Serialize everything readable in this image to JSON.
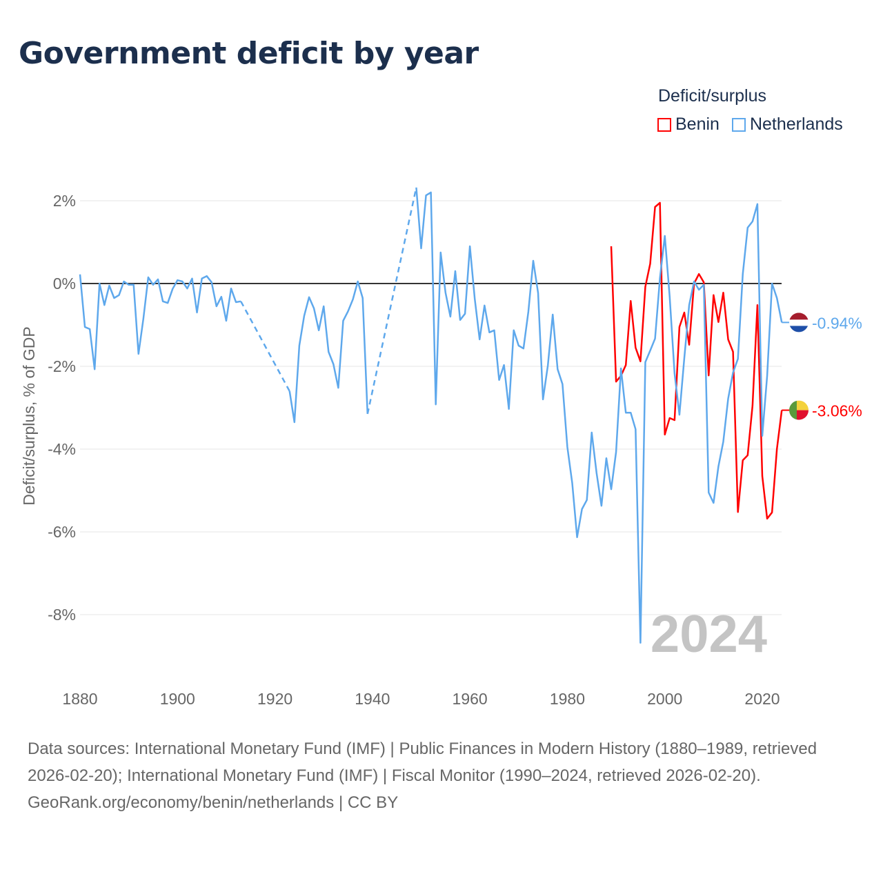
{
  "title": "Government deficit by year",
  "legend": {
    "title": "Deficit/surplus",
    "items": [
      {
        "label": "Benin",
        "color": "#ff0000"
      },
      {
        "label": "Netherlands",
        "color": "#5ea8ec"
      }
    ]
  },
  "chart_data": {
    "type": "line",
    "title": "Government deficit by year",
    "xlabel": "",
    "ylabel": "Deficit/surplus, % of GDP",
    "xlim": [
      1880,
      2024
    ],
    "ylim": [
      -9,
      3
    ],
    "x_ticks": [
      "1880",
      "1900",
      "1920",
      "1940",
      "1960",
      "1980",
      "2000",
      "2020"
    ],
    "y_ticks": [
      "2%",
      "0%",
      "-2%",
      "-4%",
      "-6%",
      "-8%"
    ],
    "year_label": "2024",
    "series": [
      {
        "name": "Netherlands",
        "color": "#5ea8ec",
        "end_label": "-0.94%",
        "points": [
          [
            1880,
            0.22
          ],
          [
            1881,
            -1.05
          ],
          [
            1882,
            -1.1
          ],
          [
            1883,
            -2.07
          ],
          [
            1884,
            0
          ],
          [
            1885,
            -0.52
          ],
          [
            1886,
            -0.05
          ],
          [
            1887,
            -0.35
          ],
          [
            1888,
            -0.28
          ],
          [
            1889,
            0.05
          ],
          [
            1890,
            -0.03
          ],
          [
            1891,
            -0.03
          ],
          [
            1892,
            -1.7
          ],
          [
            1893,
            -0.85
          ],
          [
            1894,
            0.15
          ],
          [
            1895,
            -0.03
          ],
          [
            1896,
            0.1
          ],
          [
            1897,
            -0.43
          ],
          [
            1898,
            -0.47
          ],
          [
            1899,
            -0.13
          ],
          [
            1900,
            0.08
          ],
          [
            1901,
            0.05
          ],
          [
            1902,
            -0.12
          ],
          [
            1903,
            0.12
          ],
          [
            1904,
            -0.7
          ],
          [
            1905,
            0.12
          ],
          [
            1906,
            0.18
          ],
          [
            1907,
            0.03
          ],
          [
            1908,
            -0.55
          ],
          [
            1909,
            -0.32
          ],
          [
            1910,
            -0.9
          ],
          [
            1911,
            -0.12
          ],
          [
            1912,
            -0.45
          ],
          [
            1913,
            -0.43
          ],
          [
            1923,
            -2.6
          ],
          [
            1924,
            -3.35
          ],
          [
            1925,
            -1.5
          ],
          [
            1926,
            -0.78
          ],
          [
            1927,
            -0.33
          ],
          [
            1928,
            -0.6
          ],
          [
            1929,
            -1.13
          ],
          [
            1930,
            -0.55
          ],
          [
            1931,
            -1.65
          ],
          [
            1932,
            -1.95
          ],
          [
            1933,
            -2.52
          ],
          [
            1934,
            -0.9
          ],
          [
            1935,
            -0.67
          ],
          [
            1936,
            -0.38
          ],
          [
            1937,
            0.05
          ],
          [
            1938,
            -0.35
          ],
          [
            1939,
            -3.15
          ],
          [
            1949,
            2.32
          ],
          [
            1950,
            0.85
          ],
          [
            1951,
            2.13
          ],
          [
            1952,
            2.2
          ],
          [
            1953,
            -2.92
          ],
          [
            1954,
            0.75
          ],
          [
            1955,
            -0.22
          ],
          [
            1956,
            -0.8
          ],
          [
            1957,
            0.3
          ],
          [
            1958,
            -0.88
          ],
          [
            1959,
            -0.73
          ],
          [
            1960,
            0.9
          ],
          [
            1961,
            -0.37
          ],
          [
            1962,
            -1.35
          ],
          [
            1963,
            -0.53
          ],
          [
            1964,
            -1.18
          ],
          [
            1965,
            -1.13
          ],
          [
            1966,
            -2.33
          ],
          [
            1967,
            -1.97
          ],
          [
            1968,
            -3.03
          ],
          [
            1969,
            -1.13
          ],
          [
            1970,
            -1.5
          ],
          [
            1971,
            -1.57
          ],
          [
            1972,
            -0.68
          ],
          [
            1973,
            0.55
          ],
          [
            1974,
            -0.23
          ],
          [
            1975,
            -2.8
          ],
          [
            1976,
            -1.98
          ],
          [
            1977,
            -0.75
          ],
          [
            1978,
            -2.07
          ],
          [
            1979,
            -2.43
          ],
          [
            1980,
            -3.95
          ],
          [
            1981,
            -4.82
          ],
          [
            1982,
            -6.13
          ],
          [
            1983,
            -5.45
          ],
          [
            1984,
            -5.23
          ],
          [
            1985,
            -3.6
          ],
          [
            1986,
            -4.58
          ],
          [
            1987,
            -5.37
          ],
          [
            1988,
            -4.22
          ],
          [
            1989,
            -4.97
          ],
          [
            1990,
            -4.07
          ],
          [
            1991,
            -2.05
          ],
          [
            1992,
            -3.12
          ],
          [
            1993,
            -3.12
          ],
          [
            1994,
            -3.52
          ],
          [
            1995,
            -8.68
          ],
          [
            1996,
            -1.9
          ],
          [
            1997,
            -1.62
          ],
          [
            1998,
            -1.33
          ],
          [
            1999,
            0.13
          ],
          [
            2000,
            1.15
          ],
          [
            2001,
            -0.32
          ],
          [
            2002,
            -2.17
          ],
          [
            2003,
            -3.17
          ],
          [
            2004,
            -1.8
          ],
          [
            2005,
            -0.52
          ],
          [
            2006,
            0.05
          ],
          [
            2007,
            -0.15
          ],
          [
            2008,
            -0.03
          ],
          [
            2009,
            -5.05
          ],
          [
            2010,
            -5.3
          ],
          [
            2011,
            -4.42
          ],
          [
            2012,
            -3.82
          ],
          [
            2013,
            -2.78
          ],
          [
            2014,
            -2.15
          ],
          [
            2015,
            -1.82
          ],
          [
            2016,
            0.23
          ],
          [
            2017,
            1.35
          ],
          [
            2018,
            1.5
          ],
          [
            2019,
            1.92
          ],
          [
            2020,
            -3.68
          ],
          [
            2021,
            -2.23
          ],
          [
            2022,
            0
          ],
          [
            2023,
            -0.35
          ],
          [
            2024,
            -0.94
          ]
        ]
      },
      {
        "name": "Benin",
        "color": "#ff0000",
        "end_label": "-3.06%",
        "points": [
          [
            1989,
            0.9
          ],
          [
            1990,
            -2.37
          ],
          [
            1991,
            -2.23
          ],
          [
            1992,
            -1.97
          ],
          [
            1993,
            -0.42
          ],
          [
            1994,
            -1.55
          ],
          [
            1995,
            -1.88
          ],
          [
            1996,
            -0.08
          ],
          [
            1997,
            0.48
          ],
          [
            1998,
            1.85
          ],
          [
            1999,
            1.95
          ],
          [
            2000,
            -3.65
          ],
          [
            2001,
            -3.25
          ],
          [
            2002,
            -3.3
          ],
          [
            2003,
            -1.05
          ],
          [
            2004,
            -0.7
          ],
          [
            2005,
            -1.48
          ],
          [
            2006,
            0
          ],
          [
            2007,
            0.23
          ],
          [
            2008,
            0.03
          ],
          [
            2009,
            -2.22
          ],
          [
            2010,
            -0.28
          ],
          [
            2011,
            -0.93
          ],
          [
            2012,
            -0.22
          ],
          [
            2013,
            -1.35
          ],
          [
            2014,
            -1.65
          ],
          [
            2015,
            -5.52
          ],
          [
            2016,
            -4.27
          ],
          [
            2017,
            -4.15
          ],
          [
            2018,
            -2.95
          ],
          [
            2019,
            -0.52
          ],
          [
            2020,
            -4.65
          ],
          [
            2021,
            -5.68
          ],
          [
            2022,
            -5.53
          ],
          [
            2023,
            -4.0
          ],
          [
            2024,
            -3.06
          ]
        ]
      }
    ]
  },
  "footer": {
    "sources": "Data sources: International Monetary Fund (IMF) | Public Finances in Modern History (1880–1989, retrieved 2026-02-20); International Monetary Fund (IMF) | Fiscal Monitor (1990–2024, retrieved 2026-02-20).",
    "credit": "GeoRank.org/economy/benin/netherlands | CC BY"
  }
}
